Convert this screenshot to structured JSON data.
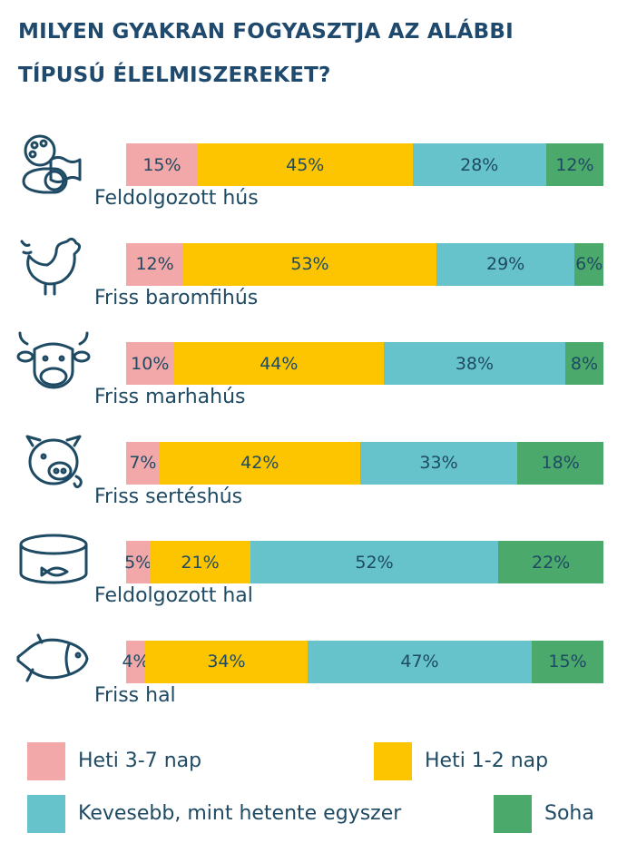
{
  "chart_data": {
    "type": "bar",
    "orientation": "horizontal",
    "stacked": true,
    "title": "MILYEN GYAKRAN FOGYASZTJA AZ ALÁBBI TÍPUSÚ ÉLELMISZEREKET?",
    "title_lines": [
      "MILYEN GYAKRAN FOGYASZTJA AZ ALÁBBI",
      "TÍPUSÚ ÉLELMISZEREKET?"
    ],
    "categories": [
      "Feldolgozott hús",
      "Friss baromfihús",
      "Friss marhahús",
      "Friss sertéshús",
      "Feldolgozott hal",
      "Friss hal"
    ],
    "category_icons": [
      "processed-meat-icon",
      "chicken-icon",
      "cow-icon",
      "pig-icon",
      "canned-fish-icon",
      "fish-icon"
    ],
    "series": [
      {
        "name": "Heti 3-7 nap",
        "color": "#f2a7a8",
        "values": [
          15,
          12,
          10,
          7,
          5,
          4
        ]
      },
      {
        "name": "Heti 1-2 nap",
        "color": "#fcc500",
        "values": [
          45,
          53,
          44,
          42,
          21,
          34
        ]
      },
      {
        "name": "Kevesebb, mint hetente egyszer",
        "color": "#66c2cb",
        "values": [
          28,
          29,
          38,
          33,
          52,
          47
        ]
      },
      {
        "name": "Soha",
        "color": "#4aa96b",
        "values": [
          12,
          6,
          8,
          18,
          22,
          15
        ]
      }
    ],
    "unit": "%",
    "legend_position": "bottom"
  }
}
